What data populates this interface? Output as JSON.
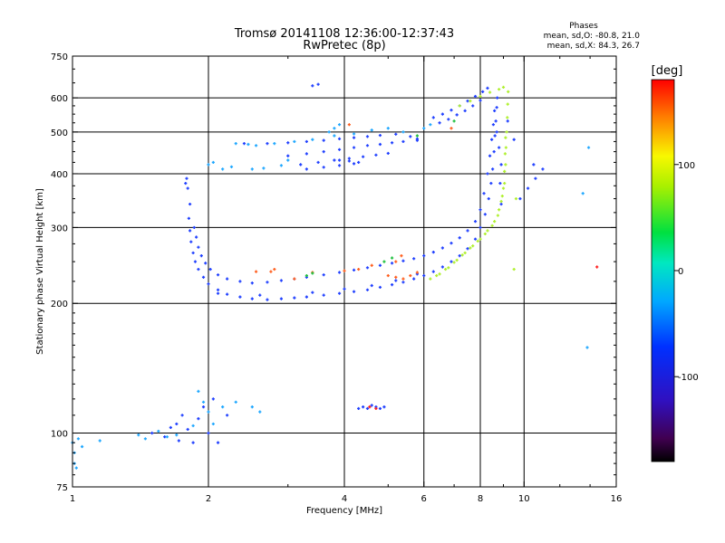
{
  "header": {
    "title_line1": "Tromsø 20141108 12:36:00-12:37:43",
    "title_line2": "RwPretec (8p)",
    "stats_title": "Phases",
    "stats_o": "mean, sd,O: -80.8, 21.0",
    "stats_x": "mean, sd,X:  84.3, 26.7"
  },
  "chart_data": {
    "type": "scatter",
    "xlabel": "Frequency [MHz]",
    "ylabel": "Stationary phase Virtual Height [km]",
    "x_scale": "log",
    "y_scale": "log",
    "xlim": [
      1,
      16
    ],
    "ylim": [
      75,
      750
    ],
    "grid": true,
    "x_ticks": [
      1,
      2,
      4,
      6,
      8,
      10,
      16
    ],
    "x_tick_labels": [
      "1",
      "2",
      "4",
      "6",
      "8",
      "10",
      "16"
    ],
    "y_ticks": [
      75,
      100,
      200,
      300,
      400,
      500,
      600,
      750
    ],
    "y_tick_labels": [
      "75",
      "100",
      "200",
      "300",
      "400",
      "500",
      "600",
      "750"
    ],
    "x_gridlines": [
      2,
      4,
      6,
      8,
      10
    ],
    "y_gridlines": [
      100,
      200,
      300,
      400,
      500,
      600
    ],
    "colorbar": {
      "label": "[deg]",
      "range": [
        -180,
        180
      ],
      "ticks": [
        100,
        0,
        -100
      ],
      "tick_labels": [
        "100",
        "0",
        "-100"
      ]
    },
    "series": [
      {
        "color": "#2040ff",
        "points": [
          [
            1.82,
            340
          ],
          [
            1.81,
            315
          ],
          [
            1.82,
            295
          ],
          [
            1.83,
            278
          ],
          [
            1.85,
            262
          ],
          [
            1.87,
            250
          ],
          [
            1.9,
            240
          ],
          [
            1.95,
            230
          ],
          [
            2.0,
            222
          ],
          [
            2.1,
            215
          ],
          [
            2.2,
            210
          ],
          [
            2.35,
            207
          ],
          [
            2.5,
            205
          ],
          [
            2.7,
            204
          ],
          [
            2.9,
            205
          ],
          [
            3.1,
            206
          ],
          [
            3.3,
            207
          ],
          [
            3.6,
            209
          ],
          [
            3.9,
            211
          ],
          [
            4.2,
            213
          ],
          [
            4.5,
            215
          ],
          [
            4.8,
            218
          ],
          [
            5.1,
            221
          ],
          [
            5.4,
            224
          ],
          [
            5.7,
            228
          ],
          [
            6.0,
            232
          ],
          [
            6.3,
            237
          ],
          [
            6.6,
            243
          ],
          [
            6.9,
            250
          ],
          [
            7.2,
            258
          ],
          [
            7.5,
            268
          ],
          [
            7.8,
            282
          ],
          [
            8.0,
            300
          ],
          [
            8.2,
            322
          ],
          [
            8.35,
            350
          ],
          [
            8.45,
            380
          ],
          [
            8.52,
            410
          ],
          [
            8.58,
            450
          ],
          [
            8.62,
            490
          ],
          [
            8.66,
            530
          ],
          [
            8.7,
            570
          ],
          [
            8.72,
            600
          ],
          [
            1.86,
            300
          ],
          [
            1.88,
            285
          ],
          [
            1.9,
            270
          ],
          [
            1.93,
            258
          ],
          [
            1.97,
            248
          ],
          [
            2.02,
            240
          ],
          [
            2.1,
            233
          ],
          [
            2.2,
            228
          ],
          [
            2.35,
            225
          ],
          [
            2.5,
            223
          ],
          [
            2.7,
            224
          ],
          [
            2.9,
            226
          ],
          [
            3.1,
            228
          ],
          [
            3.3,
            230
          ],
          [
            3.6,
            233
          ],
          [
            3.9,
            236
          ],
          [
            4.2,
            239
          ],
          [
            4.5,
            242
          ],
          [
            4.8,
            245
          ],
          [
            5.1,
            248
          ],
          [
            5.4,
            251
          ],
          [
            5.7,
            254
          ],
          [
            6.0,
            258
          ],
          [
            6.3,
            263
          ],
          [
            6.6,
            269
          ],
          [
            6.9,
            276
          ],
          [
            7.2,
            284
          ],
          [
            7.5,
            295
          ],
          [
            7.8,
            310
          ],
          [
            8.0,
            330
          ],
          [
            8.15,
            360
          ],
          [
            8.3,
            400
          ],
          [
            8.4,
            440
          ],
          [
            8.48,
            480
          ],
          [
            8.55,
            520
          ],
          [
            8.6,
            560
          ],
          [
            2.1,
            211
          ],
          [
            2.6,
            209
          ],
          [
            3.4,
            212
          ],
          [
            4.0,
            216
          ],
          [
            4.6,
            220
          ],
          [
            5.2,
            226
          ],
          [
            5.8,
            234
          ],
          [
            2.4,
            470
          ],
          [
            2.7,
            470
          ],
          [
            3.0,
            472
          ],
          [
            3.3,
            475
          ],
          [
            3.6,
            478
          ],
          [
            3.9,
            482
          ],
          [
            4.2,
            485
          ],
          [
            4.5,
            488
          ],
          [
            4.8,
            491
          ],
          [
            5.2,
            494
          ],
          [
            5.6,
            488
          ],
          [
            5.8,
            482
          ],
          [
            3.0,
            440
          ],
          [
            3.3,
            445
          ],
          [
            3.6,
            450
          ],
          [
            3.9,
            455
          ],
          [
            4.2,
            460
          ],
          [
            4.5,
            465
          ],
          [
            4.8,
            468
          ],
          [
            5.1,
            472
          ],
          [
            5.4,
            475
          ],
          [
            5.8,
            478
          ],
          [
            3.2,
            420
          ],
          [
            3.5,
            425
          ],
          [
            3.8,
            430
          ],
          [
            4.1,
            434
          ],
          [
            4.4,
            438
          ],
          [
            4.7,
            442
          ],
          [
            5.0,
            446
          ],
          [
            3.3,
            410
          ],
          [
            3.6,
            414
          ],
          [
            3.9,
            418
          ],
          [
            4.2,
            422
          ],
          [
            6.3,
            540
          ],
          [
            6.6,
            550
          ],
          [
            6.9,
            562
          ],
          [
            7.2,
            575
          ],
          [
            7.5,
            590
          ],
          [
            7.8,
            605
          ],
          [
            8.1,
            620
          ],
          [
            8.3,
            632
          ],
          [
            6.5,
            525
          ],
          [
            6.8,
            535
          ],
          [
            7.1,
            548
          ],
          [
            7.4,
            560
          ],
          [
            7.7,
            575
          ],
          [
            8.0,
            592
          ],
          [
            3.4,
            640
          ],
          [
            3.5,
            645
          ],
          [
            1.78,
            380
          ],
          [
            1.8,
            370
          ],
          [
            1.79,
            390
          ],
          [
            1.5,
            100
          ],
          [
            1.6,
            98
          ],
          [
            1.7,
            105
          ],
          [
            1.75,
            110
          ],
          [
            1.8,
            102
          ],
          [
            1.85,
            95
          ],
          [
            1.9,
            108
          ],
          [
            1.95,
            115
          ],
          [
            2.0,
            100
          ],
          [
            2.05,
            120
          ],
          [
            2.1,
            95
          ],
          [
            2.2,
            110
          ],
          [
            1.65,
            103
          ],
          [
            1.72,
            96
          ],
          [
            9.8,
            350
          ],
          [
            10.2,
            370
          ],
          [
            10.5,
            420
          ],
          [
            11.0,
            410
          ],
          [
            10.6,
            390
          ],
          [
            9.5,
            480
          ],
          [
            9.2,
            530
          ],
          [
            8.9,
            420
          ],
          [
            8.8,
            460
          ],
          [
            8.7,
            500
          ],
          [
            8.85,
            380
          ],
          [
            8.9,
            340
          ],
          [
            4.3,
            114
          ],
          [
            4.4,
            115
          ],
          [
            4.5,
            114
          ],
          [
            4.6,
            116
          ],
          [
            4.7,
            115
          ],
          [
            4.8,
            114
          ],
          [
            4.9,
            115
          ],
          [
            3.9,
            430
          ],
          [
            4.1,
            428
          ],
          [
            4.3,
            425
          ]
        ]
      },
      {
        "color": "#20a8ff",
        "points": [
          [
            2.0,
            420
          ],
          [
            2.05,
            425
          ],
          [
            2.15,
            410
          ],
          [
            2.25,
            415
          ],
          [
            2.5,
            410
          ],
          [
            2.65,
            412
          ],
          [
            2.9,
            418
          ],
          [
            3.0,
            430
          ],
          [
            2.3,
            470
          ],
          [
            2.45,
            468
          ],
          [
            2.55,
            465
          ],
          [
            2.8,
            470
          ],
          [
            3.1,
            475
          ],
          [
            3.4,
            480
          ],
          [
            3.8,
            490
          ],
          [
            4.2,
            495
          ],
          [
            4.6,
            505
          ],
          [
            5.0,
            510
          ],
          [
            5.4,
            500
          ],
          [
            1.0,
            95
          ],
          [
            1.03,
            97
          ],
          [
            1.05,
            93
          ],
          [
            1.01,
            90
          ],
          [
            1.15,
            96
          ],
          [
            1.4,
            99
          ],
          [
            1.45,
            97
          ],
          [
            1.55,
            101
          ],
          [
            1.62,
            98
          ],
          [
            1.7,
            99
          ],
          [
            1.85,
            104
          ],
          [
            2.0,
            112
          ],
          [
            2.15,
            115
          ],
          [
            2.3,
            118
          ],
          [
            2.5,
            115
          ],
          [
            2.6,
            112
          ],
          [
            1.9,
            125
          ],
          [
            1.95,
            118
          ],
          [
            2.05,
            105
          ],
          [
            1.02,
            83
          ],
          [
            1.01,
            85
          ],
          [
            6.0,
            510
          ],
          [
            6.2,
            520
          ],
          [
            3.7,
            500
          ],
          [
            3.8,
            510
          ],
          [
            3.9,
            520
          ],
          [
            13.5,
            360
          ],
          [
            13.8,
            158
          ],
          [
            13.9,
            460
          ]
        ]
      },
      {
        "color": "#b0f030",
        "points": [
          [
            6.2,
            228
          ],
          [
            6.5,
            234
          ],
          [
            6.8,
            242
          ],
          [
            7.1,
            252
          ],
          [
            7.4,
            262
          ],
          [
            7.7,
            272
          ],
          [
            8.0,
            282
          ],
          [
            8.3,
            295
          ],
          [
            8.6,
            310
          ],
          [
            8.8,
            330
          ],
          [
            8.95,
            355
          ],
          [
            9.05,
            380
          ],
          [
            9.1,
            420
          ],
          [
            9.12,
            460
          ],
          [
            9.15,
            500
          ],
          [
            9.18,
            540
          ],
          [
            9.2,
            580
          ],
          [
            9.22,
            620
          ],
          [
            6.4,
            232
          ],
          [
            6.7,
            240
          ],
          [
            7.0,
            249
          ],
          [
            7.3,
            259
          ],
          [
            7.6,
            269
          ],
          [
            7.9,
            279
          ],
          [
            8.2,
            290
          ],
          [
            8.5,
            303
          ],
          [
            8.75,
            320
          ],
          [
            8.9,
            345
          ],
          [
            9.0,
            370
          ],
          [
            9.05,
            405
          ],
          [
            9.08,
            445
          ],
          [
            9.1,
            485
          ],
          [
            7.2,
            575
          ],
          [
            7.6,
            590
          ],
          [
            8.0,
            605
          ],
          [
            8.4,
            618
          ],
          [
            8.8,
            628
          ],
          [
            9.0,
            635
          ],
          [
            9.5,
            240
          ],
          [
            9.6,
            350
          ]
        ]
      },
      {
        "color": "#ff6020",
        "points": [
          [
            5.0,
            232
          ],
          [
            5.2,
            230
          ],
          [
            5.4,
            228
          ],
          [
            5.6,
            232
          ],
          [
            5.8,
            236
          ],
          [
            4.0,
            238
          ],
          [
            4.3,
            240
          ],
          [
            4.6,
            245
          ],
          [
            3.4,
            236
          ],
          [
            3.1,
            228
          ],
          [
            2.8,
            240
          ],
          [
            2.55,
            237
          ],
          [
            2.75,
            237
          ],
          [
            4.1,
            520
          ],
          [
            6.9,
            510
          ],
          [
            5.2,
            250
          ],
          [
            5.35,
            258
          ]
        ]
      },
      {
        "color": "#20c040",
        "points": [
          [
            4.9,
            250
          ],
          [
            5.1,
            255
          ],
          [
            3.4,
            235
          ],
          [
            3.3,
            232
          ],
          [
            7.0,
            530
          ],
          [
            5.8,
            490
          ]
        ]
      },
      {
        "color": "#ff2020",
        "points": [
          [
            14.5,
            243
          ],
          [
            4.55,
            115
          ],
          [
            4.7,
            114
          ]
        ]
      }
    ]
  }
}
